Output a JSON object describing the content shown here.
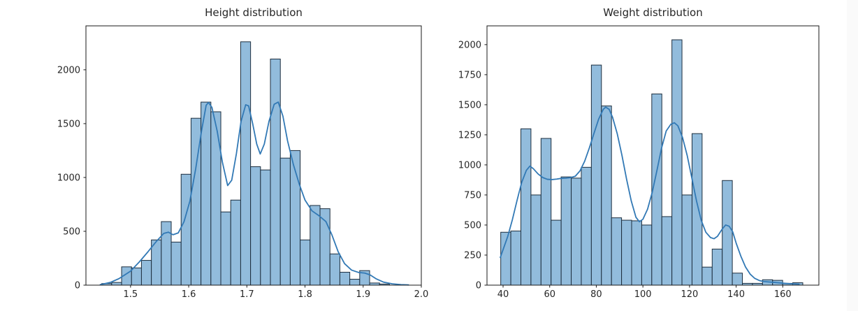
{
  "figure": {
    "background": "#ffffff",
    "gutter_color": "#fafafa"
  },
  "colors": {
    "bar_fill": "#92bcdc",
    "bar_edge": "#1d2e3e",
    "kde_line": "#3279b5",
    "axis": "#1a1a1a",
    "text": "#262626"
  },
  "chart_data": [
    {
      "type": "bar",
      "subtype": "histogram_with_kde",
      "title": "Height distribution",
      "xlabel": "",
      "ylabel": "",
      "xlim": [
        1.4233,
        2.0
      ],
      "ylim": [
        0,
        2408
      ],
      "x_ticks": [
        1.5,
        1.6,
        1.7,
        1.8,
        1.9,
        2.0
      ],
      "x_tick_labels": [
        "1.5",
        "1.6",
        "1.7",
        "1.8",
        "1.9",
        "2.0"
      ],
      "y_ticks": [
        0,
        500,
        1000,
        1500,
        2000
      ],
      "y_tick_labels": [
        "0",
        "500",
        "1000",
        "1500",
        "2000"
      ],
      "grid": false,
      "legend": "none",
      "bins": {
        "start": 1.4505,
        "width": 0.01706,
        "values": [
          15,
          25,
          170,
          160,
          230,
          420,
          590,
          400,
          1030,
          1550,
          1700,
          1610,
          680,
          790,
          2260,
          1100,
          1070,
          2100,
          1180,
          1250,
          420,
          740,
          710,
          290,
          120,
          55,
          135,
          20,
          10
        ]
      },
      "kde": [
        [
          1.448,
          5
        ],
        [
          1.465,
          25
        ],
        [
          1.48,
          60
        ],
        [
          1.5,
          130
        ],
        [
          1.515,
          215
        ],
        [
          1.53,
          310
        ],
        [
          1.545,
          410
        ],
        [
          1.557,
          480
        ],
        [
          1.565,
          492
        ],
        [
          1.573,
          468
        ],
        [
          1.582,
          485
        ],
        [
          1.592,
          590
        ],
        [
          1.602,
          780
        ],
        [
          1.612,
          1080
        ],
        [
          1.622,
          1430
        ],
        [
          1.63,
          1670
        ],
        [
          1.634,
          1697
        ],
        [
          1.64,
          1650
        ],
        [
          1.649,
          1430
        ],
        [
          1.658,
          1140
        ],
        [
          1.667,
          925
        ],
        [
          1.674,
          975
        ],
        [
          1.682,
          1220
        ],
        [
          1.69,
          1520
        ],
        [
          1.698,
          1675
        ],
        [
          1.703,
          1665
        ],
        [
          1.71,
          1500
        ],
        [
          1.717,
          1310
        ],
        [
          1.723,
          1218
        ],
        [
          1.73,
          1310
        ],
        [
          1.738,
          1520
        ],
        [
          1.747,
          1680
        ],
        [
          1.754,
          1700
        ],
        [
          1.762,
          1570
        ],
        [
          1.77,
          1340
        ],
        [
          1.78,
          1120
        ],
        [
          1.79,
          940
        ],
        [
          1.8,
          790
        ],
        [
          1.812,
          690
        ],
        [
          1.824,
          645
        ],
        [
          1.836,
          590
        ],
        [
          1.846,
          470
        ],
        [
          1.857,
          310
        ],
        [
          1.868,
          200
        ],
        [
          1.88,
          140
        ],
        [
          1.892,
          118
        ],
        [
          1.903,
          112
        ],
        [
          1.912,
          95
        ],
        [
          1.922,
          60
        ],
        [
          1.935,
          28
        ],
        [
          1.95,
          12
        ],
        [
          1.965,
          5
        ],
        [
          1.978,
          2
        ]
      ]
    },
    {
      "type": "bar",
      "subtype": "histogram_with_kde",
      "title": "Weight distribution",
      "xlabel": "",
      "ylabel": "",
      "xlim": [
        33.1,
        175.5
      ],
      "ylim": [
        0,
        2156
      ],
      "x_ticks": [
        40,
        60,
        80,
        100,
        120,
        140,
        160
      ],
      "x_tick_labels": [
        "40",
        "60",
        "80",
        "100",
        "120",
        "140",
        "160"
      ],
      "y_ticks": [
        0,
        250,
        500,
        750,
        1000,
        1250,
        1500,
        1750,
        2000
      ],
      "y_tick_labels": [
        "0",
        "250",
        "500",
        "750",
        "1000",
        "1250",
        "1500",
        "1750",
        "2000"
      ],
      "grid": false,
      "legend": "none",
      "bins": {
        "start": 39.0,
        "width": 4.32,
        "values": [
          440,
          450,
          1300,
          750,
          1220,
          540,
          900,
          890,
          980,
          1830,
          1490,
          560,
          540,
          535,
          500,
          1590,
          570,
          2040,
          750,
          1260,
          150,
          300,
          870,
          100,
          15,
          15,
          45,
          40,
          15,
          20
        ]
      },
      "kde": [
        [
          38.8,
          230
        ],
        [
          40,
          295
        ],
        [
          42,
          405
        ],
        [
          44,
          545
        ],
        [
          46,
          705
        ],
        [
          48,
          855
        ],
        [
          50,
          955
        ],
        [
          51.5,
          990
        ],
        [
          53,
          968
        ],
        [
          55,
          925
        ],
        [
          57,
          895
        ],
        [
          59,
          880
        ],
        [
          61,
          878
        ],
        [
          63,
          882
        ],
        [
          65,
          888
        ],
        [
          67,
          890
        ],
        [
          69,
          894
        ],
        [
          71,
          906
        ],
        [
          73,
          950
        ],
        [
          75,
          1030
        ],
        [
          77,
          1140
        ],
        [
          79,
          1262
        ],
        [
          81,
          1380
        ],
        [
          83,
          1462
        ],
        [
          84,
          1480
        ],
        [
          85.5,
          1462
        ],
        [
          87,
          1395
        ],
        [
          89,
          1258
        ],
        [
          91,
          1080
        ],
        [
          93,
          880
        ],
        [
          95,
          700
        ],
        [
          97,
          565
        ],
        [
          98.5,
          527
        ],
        [
          100,
          548
        ],
        [
          102,
          632
        ],
        [
          104,
          772
        ],
        [
          106,
          952
        ],
        [
          108,
          1140
        ],
        [
          110,
          1282
        ],
        [
          112,
          1338
        ],
        [
          113.5,
          1350
        ],
        [
          115,
          1325
        ],
        [
          117,
          1228
        ],
        [
          119,
          1078
        ],
        [
          121,
          890
        ],
        [
          123,
          700
        ],
        [
          125,
          540
        ],
        [
          127,
          440
        ],
        [
          129,
          396
        ],
        [
          130.5,
          386
        ],
        [
          132,
          406
        ],
        [
          134,
          466
        ],
        [
          135.5,
          500
        ],
        [
          137,
          490
        ],
        [
          138.5,
          445
        ],
        [
          140,
          350
        ],
        [
          142,
          242
        ],
        [
          144,
          152
        ],
        [
          146,
          92
        ],
        [
          148,
          56
        ],
        [
          150,
          38
        ],
        [
          152,
          30
        ],
        [
          155,
          25
        ],
        [
          158,
          20
        ],
        [
          161,
          15
        ],
        [
          164,
          11
        ],
        [
          167,
          8
        ]
      ]
    }
  ]
}
